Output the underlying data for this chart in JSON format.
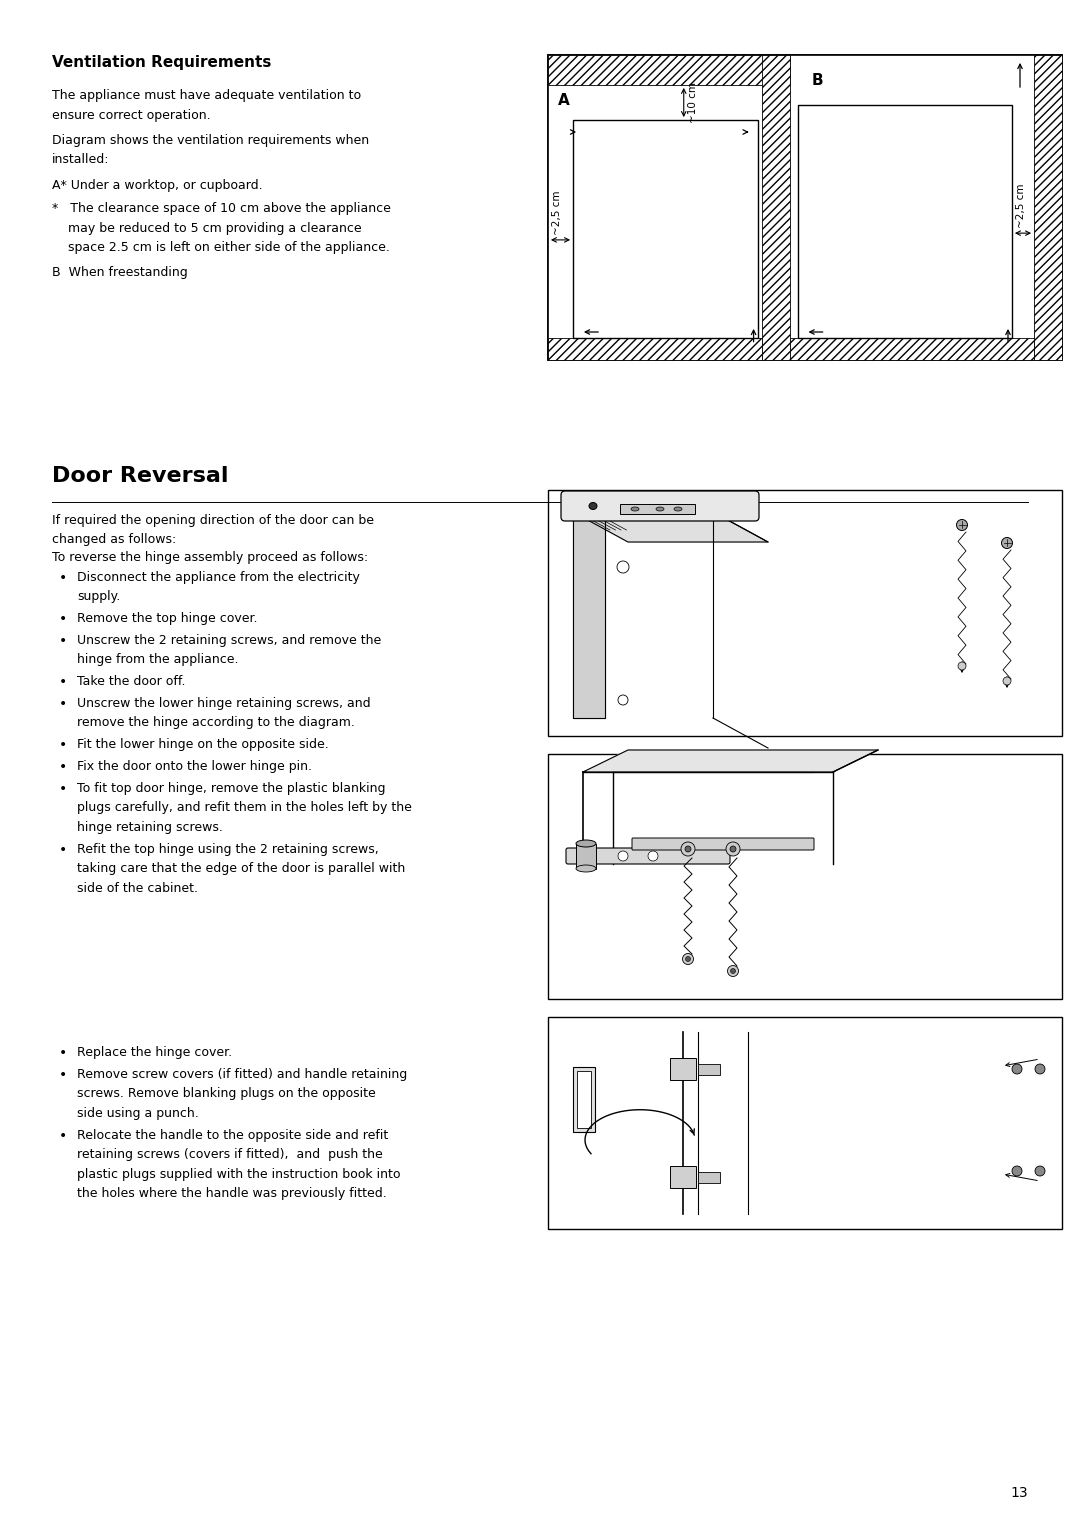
{
  "bg_color": "#ffffff",
  "page_width": 10.8,
  "page_height": 15.28,
  "dpi": 100,
  "ml": 0.52,
  "mr": 0.52,
  "mt": 0.55,
  "mb": 0.35,
  "fc": "#000000",
  "title1": "Ventilation Requirements",
  "para1_line1": "The appliance must have adequate ventilation to",
  "para1_line2": "ensure correct operation.",
  "para2_line1": "Diagram shows the ventilation requirements when",
  "para2_line2": "installed:",
  "item_a": "A* Under a worktop, or cupboard.",
  "star_lines": [
    "*   The clearance space of 10 cm above the appliance",
    "    may be reduced to 5 cm providing a clearance",
    "    space 2.5 cm is left on either side of the appliance."
  ],
  "item_b": "B  When freestanding",
  "title2": "Door Reversal",
  "para3_line1": "If required the opening direction of the door can be",
  "para3_line2": "changed as follows:",
  "para4": "To reverse the hinge assembly proceed as follows:",
  "bullets": [
    [
      "Disconnect the appliance from the electricity",
      "supply."
    ],
    [
      "Remove the top hinge cover."
    ],
    [
      "Unscrew the 2 retaining screws, and remove the",
      "hinge from the appliance."
    ],
    [
      "Take the door off."
    ],
    [
      "Unscrew the lower hinge retaining screws, and",
      "remove the hinge according to the diagram."
    ],
    [
      "Fit the lower hinge on the opposite side."
    ],
    [
      "Fix the door onto the lower hinge pin."
    ],
    [
      "To fit top door hinge, remove the plastic blanking",
      "plugs carefully, and refit them in the holes left by the",
      "hinge retaining screws."
    ],
    [
      "Refit the top hinge using the 2 retaining screws,",
      "taking care that the edge of the door is parallel with",
      "side of the cabinet."
    ]
  ],
  "bullets2": [
    [
      "Replace the hinge cover."
    ],
    [
      "Remove screw covers (if fitted) and handle retaining",
      "screws. Remove blanking plugs on the opposite",
      "side using a punch."
    ],
    [
      "Relocate the handle to the opposite side and refit",
      "retaining screws (covers if fitted),  and  push the",
      "plastic plugs supplied with the instruction book into",
      "the holes where the handle was previously fitted."
    ]
  ],
  "page_num": "13",
  "title1_fs": 11,
  "body_fs": 9,
  "title2_fs": 16
}
